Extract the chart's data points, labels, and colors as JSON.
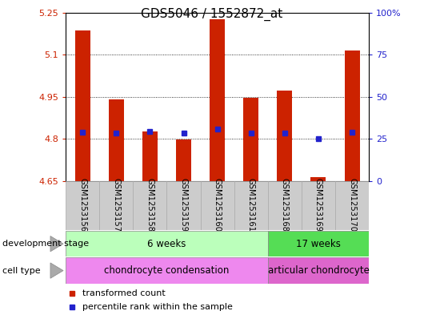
{
  "title": "GDS5046 / 1552872_at",
  "samples": [
    "GSM1253156",
    "GSM1253157",
    "GSM1253158",
    "GSM1253159",
    "GSM1253160",
    "GSM1253161",
    "GSM1253168",
    "GSM1253169",
    "GSM1253170"
  ],
  "bar_tops": [
    5.185,
    4.942,
    4.828,
    4.797,
    5.225,
    4.948,
    4.973,
    4.663,
    5.115
  ],
  "bar_base": 4.65,
  "percentile_values": [
    4.825,
    4.822,
    4.826,
    4.821,
    4.834,
    4.822,
    4.82,
    4.8,
    4.824
  ],
  "ylim_left": [
    4.65,
    5.25
  ],
  "ylim_right": [
    0,
    100
  ],
  "yticks_left": [
    4.65,
    4.8,
    4.95,
    5.1,
    5.25
  ],
  "yticks_right": [
    0,
    25,
    50,
    75,
    100
  ],
  "ytick_labels_left": [
    "4.65",
    "4.8",
    "4.95",
    "5.1",
    "5.25"
  ],
  "ytick_labels_right": [
    "0",
    "25",
    "50",
    "75",
    "100%"
  ],
  "bar_color": "#cc2200",
  "percentile_color": "#2222cc",
  "dev_stage_label": "development stage",
  "dev_stage_groups": [
    {
      "label": "6 weeks",
      "start": 0,
      "end": 5,
      "color": "#bbffbb"
    },
    {
      "label": "17 weeks",
      "start": 6,
      "end": 8,
      "color": "#55dd55"
    }
  ],
  "cell_type_label": "cell type",
  "cell_type_groups": [
    {
      "label": "chondrocyte condensation",
      "start": 0,
      "end": 5,
      "color": "#ee88ee"
    },
    {
      "label": "articular chondrocyte",
      "start": 6,
      "end": 8,
      "color": "#dd66cc"
    }
  ],
  "legend_items": [
    {
      "label": "transformed count",
      "color": "#cc2200"
    },
    {
      "label": "percentile rank within the sample",
      "color": "#2222cc"
    }
  ],
  "title_fontsize": 11,
  "tick_fontsize": 8,
  "bar_width": 0.45,
  "grid_yticks": [
    4.8,
    4.95,
    5.1
  ]
}
